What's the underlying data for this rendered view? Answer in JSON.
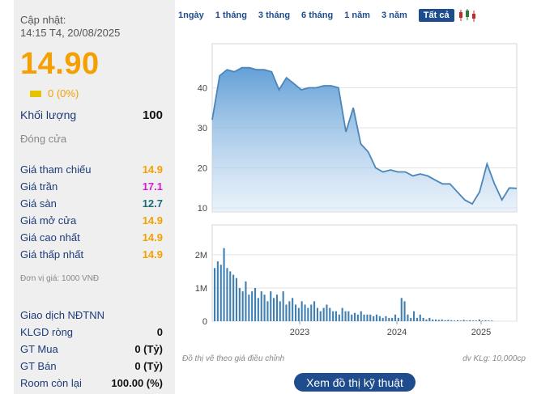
{
  "panel": {
    "update_label": "Cập nhật:",
    "update_time": "14:15 T4, 20/08/2025",
    "price": "14.90",
    "change": "0 (0%)",
    "volume_label": "Khối lượng",
    "volume_value": "100",
    "close_label": "Đóng cửa",
    "rows": [
      {
        "label": "Giá tham chiếu",
        "value": "14.9",
        "color": "#f5a000"
      },
      {
        "label": "Giá trần",
        "value": "17.1",
        "color": "#d81bdb"
      },
      {
        "label": "Giá sàn",
        "value": "12.7",
        "color": "#1a6b7a"
      },
      {
        "label": "Giá mở cửa",
        "value": "14.9",
        "color": "#f5a000"
      },
      {
        "label": "Giá cao nhất",
        "value": "14.9",
        "color": "#f5a000"
      },
      {
        "label": "Giá thấp nhất",
        "value": "14.9",
        "color": "#f5a000"
      }
    ],
    "unit_note": "Đơn vị giá: 1000 VNĐ",
    "foreign_title": "Giao dịch NĐTNN",
    "foreign_rows": [
      {
        "label": "KLGD ròng",
        "value": "0"
      },
      {
        "label": "GT Mua",
        "value": "0 (Tỷ)"
      },
      {
        "label": "GT Bán",
        "value": "0 (Tỷ)"
      },
      {
        "label": "Room còn lại",
        "value": "100.00 (%)"
      }
    ]
  },
  "tabs": [
    "1ngày",
    "1 tháng",
    "3 tháng",
    "6 tháng",
    "1 năm",
    "3 năm",
    "Tất cả"
  ],
  "active_tab": "Tất cả",
  "footnote_left": "Đồ thị vẽ theo giá điều chỉnh",
  "footnote_right": "dv KLg: 10,000cp",
  "tech_button": "Xem đồ thị kỹ thuật",
  "colors": {
    "accent": "#1e4c8c",
    "price": "#f5a000",
    "line": "#4a86b8"
  },
  "chart_data": [
    {
      "type": "area",
      "x": [
        "2022-03",
        "2022-04",
        "2022-05",
        "2022-06",
        "2022-07",
        "2022-08",
        "2022-09",
        "2022-10",
        "2022-11",
        "2022-12",
        "2023-01",
        "2023-02",
        "2023-03",
        "2023-04",
        "2023-05",
        "2023-06",
        "2023-07",
        "2023-08",
        "2023-09",
        "2023-10",
        "2023-11",
        "2023-12",
        "2024-01",
        "2024-02",
        "2024-03",
        "2024-04",
        "2024-05",
        "2024-06",
        "2024-07",
        "2024-08",
        "2024-09",
        "2024-10",
        "2024-11",
        "2024-12",
        "2025-01",
        "2025-02",
        "2025-03",
        "2025-04",
        "2025-05",
        "2025-06",
        "2025-07",
        "2025-08"
      ],
      "values": [
        32,
        43,
        44.5,
        44,
        45,
        45,
        44.5,
        44.5,
        44,
        39.5,
        42.5,
        41,
        39.5,
        40,
        40,
        40.5,
        40.5,
        40,
        29,
        35,
        26,
        24,
        20,
        19,
        19.5,
        19,
        19,
        18,
        18.5,
        18,
        17,
        16,
        16,
        14,
        12,
        11,
        14,
        21,
        16,
        12,
        15,
        14.9
      ],
      "y_ticks": [
        10,
        20,
        30,
        40
      ],
      "x_ticks": [
        "2023",
        "2024",
        "2025"
      ],
      "ylim": [
        9,
        51
      ]
    },
    {
      "type": "bar",
      "y_ticks": [
        "0",
        "1M",
        "2M"
      ],
      "ylim": [
        0,
        2.9
      ],
      "values": [
        1.6,
        1.8,
        1.7,
        2.2,
        1.6,
        1.5,
        1.4,
        1.3,
        1.0,
        0.9,
        1.2,
        0.8,
        0.9,
        1.0,
        0.7,
        0.9,
        0.8,
        0.6,
        0.9,
        0.7,
        0.8,
        0.6,
        0.9,
        0.5,
        0.6,
        0.7,
        0.5,
        0.4,
        0.6,
        0.5,
        0.4,
        0.5,
        0.6,
        0.4,
        0.3,
        0.4,
        0.5,
        0.4,
        0.3,
        0.3,
        0.2,
        0.4,
        0.3,
        0.3,
        0.2,
        0.25,
        0.2,
        0.3,
        0.2,
        0.2,
        0.2,
        0.15,
        0.2,
        0.15,
        0.1,
        0.15,
        0.1,
        0.1,
        0.2,
        0.1,
        0.7,
        0.6,
        0.2,
        0.1,
        0.3,
        0.1,
        0.2,
        0.1,
        0.05,
        0.1,
        0.05,
        0.05,
        0.04,
        0.05,
        0.03,
        0.04,
        0.03,
        0.02,
        0.03,
        0.02,
        0.04,
        0.02,
        0.03,
        0.02,
        0.02,
        0.05,
        0.02,
        0.03,
        0.02,
        0.02
      ]
    }
  ]
}
